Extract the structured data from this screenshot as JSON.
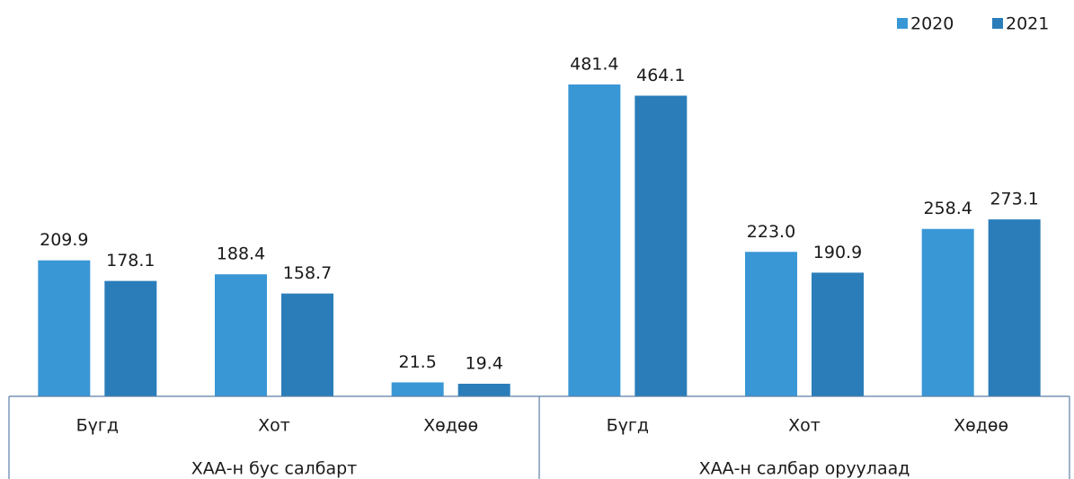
{
  "chart_data": {
    "type": "bar",
    "groups": [
      {
        "name": "ХАА-н бус салбарт",
        "categories": [
          "Бүгд",
          "Хот",
          "Хөдөө"
        ]
      },
      {
        "name": "ХАА-н салбар оруулаад",
        "categories": [
          "Бүгд",
          "Хот",
          "Хөдөө"
        ]
      }
    ],
    "series": [
      {
        "name": "2020",
        "color": "#3a97d6",
        "values": [
          209.9,
          188.4,
          21.5,
          481.4,
          223.0,
          258.4
        ],
        "value_labels": [
          "209.9",
          "188.4",
          "21.5",
          "481.4",
          "223.0",
          "258.4"
        ]
      },
      {
        "name": "2021",
        "color": "#2a7db9",
        "values": [
          178.1,
          158.7,
          19.4,
          464.1,
          190.9,
          273.1
        ],
        "value_labels": [
          "178.1",
          "158.7",
          "19.4",
          "464.1",
          "190.9",
          "273.1"
        ]
      }
    ],
    "legend": "top-right"
  }
}
